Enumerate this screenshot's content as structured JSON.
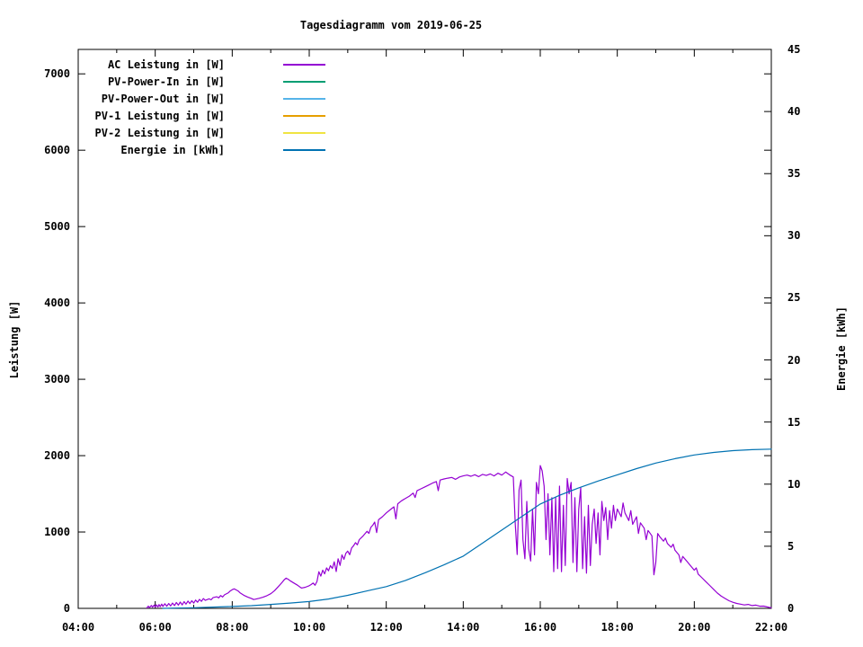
{
  "chart_data": {
    "type": "line",
    "title": "Tagesdiagramm vom 2019-06-25",
    "grid": false,
    "legend_position": "top-left-inside",
    "x_axis": {
      "range_hours": [
        4,
        22
      ],
      "major_every_hours": 2,
      "minor_every_hours": 1,
      "tick_labels": [
        "04:00",
        "06:00",
        "08:00",
        "10:00",
        "12:00",
        "14:00",
        "16:00",
        "18:00",
        "20:00",
        "22:00"
      ]
    },
    "y_left": {
      "label": "Leistung [W]",
      "range": [
        0,
        7320
      ],
      "tick_values": [
        0,
        1000,
        2000,
        3000,
        4000,
        5000,
        6000,
        7000
      ]
    },
    "y_right": {
      "label": "Energie [kWh]",
      "range": [
        0,
        45
      ],
      "tick_values": [
        0,
        5,
        10,
        15,
        20,
        25,
        30,
        35,
        40,
        45
      ]
    },
    "series": [
      {
        "name": "AC Leistung in [W]",
        "color": "#9400d3",
        "axis": "left",
        "points": [
          [
            5.78,
            5
          ],
          [
            5.82,
            30
          ],
          [
            5.85,
            10
          ],
          [
            5.9,
            38
          ],
          [
            5.93,
            15
          ],
          [
            5.97,
            42
          ],
          [
            6.0,
            16
          ],
          [
            6.03,
            46
          ],
          [
            6.07,
            18
          ],
          [
            6.1,
            50
          ],
          [
            6.13,
            22
          ],
          [
            6.17,
            55
          ],
          [
            6.2,
            25
          ],
          [
            6.25,
            60
          ],
          [
            6.3,
            28
          ],
          [
            6.35,
            64
          ],
          [
            6.4,
            32
          ],
          [
            6.45,
            70
          ],
          [
            6.5,
            36
          ],
          [
            6.55,
            76
          ],
          [
            6.6,
            42
          ],
          [
            6.65,
            82
          ],
          [
            6.7,
            46
          ],
          [
            6.75,
            88
          ],
          [
            6.8,
            55
          ],
          [
            6.85,
            95
          ],
          [
            6.9,
            62
          ],
          [
            6.95,
            100
          ],
          [
            7.0,
            70
          ],
          [
            7.05,
            108
          ],
          [
            7.1,
            80
          ],
          [
            7.15,
            118
          ],
          [
            7.2,
            92
          ],
          [
            7.25,
            128
          ],
          [
            7.3,
            105
          ],
          [
            7.4,
            125
          ],
          [
            7.45,
            112
          ],
          [
            7.5,
            140
          ],
          [
            7.6,
            152
          ],
          [
            7.65,
            138
          ],
          [
            7.7,
            168
          ],
          [
            7.75,
            148
          ],
          [
            7.8,
            178
          ],
          [
            7.9,
            205
          ],
          [
            7.95,
            228
          ],
          [
            8.0,
            245
          ],
          [
            8.05,
            255
          ],
          [
            8.1,
            242
          ],
          [
            8.15,
            228
          ],
          [
            8.2,
            205
          ],
          [
            8.3,
            172
          ],
          [
            8.4,
            148
          ],
          [
            8.5,
            128
          ],
          [
            8.55,
            116
          ],
          [
            8.6,
            120
          ],
          [
            8.7,
            132
          ],
          [
            8.8,
            146
          ],
          [
            8.9,
            166
          ],
          [
            9.0,
            192
          ],
          [
            9.1,
            232
          ],
          [
            9.2,
            286
          ],
          [
            9.3,
            342
          ],
          [
            9.35,
            376
          ],
          [
            9.4,
            395
          ],
          [
            9.45,
            382
          ],
          [
            9.5,
            362
          ],
          [
            9.6,
            332
          ],
          [
            9.7,
            302
          ],
          [
            9.75,
            282
          ],
          [
            9.8,
            266
          ],
          [
            9.9,
            276
          ],
          [
            10.0,
            296
          ],
          [
            10.05,
            312
          ],
          [
            10.1,
            332
          ],
          [
            10.15,
            302
          ],
          [
            10.2,
            352
          ],
          [
            10.25,
            480
          ],
          [
            10.3,
            422
          ],
          [
            10.35,
            500
          ],
          [
            10.4,
            452
          ],
          [
            10.45,
            530
          ],
          [
            10.5,
            492
          ],
          [
            10.55,
            560
          ],
          [
            10.6,
            522
          ],
          [
            10.65,
            610
          ],
          [
            10.7,
            482
          ],
          [
            10.75,
            650
          ],
          [
            10.8,
            562
          ],
          [
            10.85,
            700
          ],
          [
            10.9,
            642
          ],
          [
            10.95,
            720
          ],
          [
            11.0,
            750
          ],
          [
            11.05,
            702
          ],
          [
            11.1,
            790
          ],
          [
            11.15,
            820
          ],
          [
            11.2,
            860
          ],
          [
            11.25,
            832
          ],
          [
            11.3,
            900
          ],
          [
            11.4,
            950
          ],
          [
            11.5,
            1010
          ],
          [
            11.55,
            982
          ],
          [
            11.6,
            1060
          ],
          [
            11.65,
            1090
          ],
          [
            11.7,
            1130
          ],
          [
            11.75,
            992
          ],
          [
            11.8,
            1160
          ],
          [
            11.9,
            1200
          ],
          [
            12.0,
            1250
          ],
          [
            12.1,
            1290
          ],
          [
            12.2,
            1330
          ],
          [
            12.25,
            1172
          ],
          [
            12.3,
            1370
          ],
          [
            12.4,
            1410
          ],
          [
            12.5,
            1440
          ],
          [
            12.6,
            1470
          ],
          [
            12.7,
            1510
          ],
          [
            12.75,
            1452
          ],
          [
            12.8,
            1540
          ],
          [
            12.9,
            1565
          ],
          [
            13.0,
            1590
          ],
          [
            13.1,
            1615
          ],
          [
            13.2,
            1640
          ],
          [
            13.3,
            1660
          ],
          [
            13.35,
            1542
          ],
          [
            13.4,
            1680
          ],
          [
            13.5,
            1695
          ],
          [
            13.6,
            1705
          ],
          [
            13.7,
            1715
          ],
          [
            13.8,
            1690
          ],
          [
            13.9,
            1720
          ],
          [
            14.0,
            1735
          ],
          [
            14.1,
            1745
          ],
          [
            14.2,
            1730
          ],
          [
            14.3,
            1750
          ],
          [
            14.4,
            1725
          ],
          [
            14.5,
            1755
          ],
          [
            14.6,
            1740
          ],
          [
            14.7,
            1760
          ],
          [
            14.8,
            1735
          ],
          [
            14.9,
            1770
          ],
          [
            15.0,
            1745
          ],
          [
            15.1,
            1785
          ],
          [
            15.2,
            1750
          ],
          [
            15.3,
            1720
          ],
          [
            15.35,
            1100
          ],
          [
            15.4,
            705
          ],
          [
            15.45,
            1550
          ],
          [
            15.5,
            1680
          ],
          [
            15.55,
            900
          ],
          [
            15.6,
            650
          ],
          [
            15.65,
            1400
          ],
          [
            15.7,
            780
          ],
          [
            15.75,
            620
          ],
          [
            15.8,
            1300
          ],
          [
            15.85,
            700
          ],
          [
            15.9,
            1650
          ],
          [
            15.95,
            1500
          ],
          [
            16.0,
            1870
          ],
          [
            16.05,
            1800
          ],
          [
            16.1,
            1600
          ],
          [
            16.15,
            900
          ],
          [
            16.2,
            1500
          ],
          [
            16.25,
            700
          ],
          [
            16.3,
            1450
          ],
          [
            16.35,
            480
          ],
          [
            16.4,
            1450
          ],
          [
            16.45,
            520
          ],
          [
            16.5,
            1600
          ],
          [
            16.55,
            480
          ],
          [
            16.6,
            1350
          ],
          [
            16.65,
            560
          ],
          [
            16.7,
            1700
          ],
          [
            16.75,
            1500
          ],
          [
            16.8,
            1650
          ],
          [
            16.85,
            600
          ],
          [
            16.9,
            1450
          ],
          [
            16.95,
            480
          ],
          [
            17.0,
            1300
          ],
          [
            17.05,
            1580
          ],
          [
            17.1,
            520
          ],
          [
            17.15,
            1200
          ],
          [
            17.2,
            460
          ],
          [
            17.25,
            1350
          ],
          [
            17.3,
            560
          ],
          [
            17.35,
            1100
          ],
          [
            17.4,
            1300
          ],
          [
            17.45,
            850
          ],
          [
            17.5,
            1250
          ],
          [
            17.55,
            700
          ],
          [
            17.6,
            1400
          ],
          [
            17.65,
            1150
          ],
          [
            17.7,
            1320
          ],
          [
            17.75,
            900
          ],
          [
            17.8,
            1280
          ],
          [
            17.85,
            1050
          ],
          [
            17.9,
            1350
          ],
          [
            17.95,
            1150
          ],
          [
            18.0,
            1300
          ],
          [
            18.1,
            1200
          ],
          [
            18.15,
            1380
          ],
          [
            18.2,
            1250
          ],
          [
            18.3,
            1150
          ],
          [
            18.35,
            1280
          ],
          [
            18.4,
            1100
          ],
          [
            18.5,
            1200
          ],
          [
            18.55,
            980
          ],
          [
            18.6,
            1120
          ],
          [
            18.7,
            1050
          ],
          [
            18.75,
            900
          ],
          [
            18.8,
            1020
          ],
          [
            18.9,
            950
          ],
          [
            18.95,
            440
          ],
          [
            19.0,
            600
          ],
          [
            19.05,
            980
          ],
          [
            19.1,
            940
          ],
          [
            19.2,
            880
          ],
          [
            19.25,
            920
          ],
          [
            19.3,
            850
          ],
          [
            19.4,
            800
          ],
          [
            19.45,
            840
          ],
          [
            19.5,
            760
          ],
          [
            19.6,
            700
          ],
          [
            19.65,
            600
          ],
          [
            19.7,
            680
          ],
          [
            19.8,
            620
          ],
          [
            19.9,
            560
          ],
          [
            20.0,
            500
          ],
          [
            20.05,
            530
          ],
          [
            20.1,
            450
          ],
          [
            20.2,
            400
          ],
          [
            20.3,
            350
          ],
          [
            20.4,
            300
          ],
          [
            20.5,
            250
          ],
          [
            20.6,
            200
          ],
          [
            20.7,
            160
          ],
          [
            20.8,
            130
          ],
          [
            20.9,
            100
          ],
          [
            21.0,
            80
          ],
          [
            21.1,
            65
          ],
          [
            21.2,
            55
          ],
          [
            21.3,
            45
          ],
          [
            21.4,
            52
          ],
          [
            21.5,
            36
          ],
          [
            21.6,
            42
          ],
          [
            21.7,
            28
          ],
          [
            21.8,
            30
          ],
          [
            21.9,
            18
          ],
          [
            21.95,
            12
          ],
          [
            22.0,
            8
          ]
        ]
      },
      {
        "name": "PV-Power-In in [W]",
        "color": "#009e73",
        "axis": "left",
        "points": []
      },
      {
        "name": "PV-Power-Out in [W]",
        "color": "#56b4e9",
        "axis": "left",
        "points": []
      },
      {
        "name": "PV-1 Leistung in [W]",
        "color": "#e69f00",
        "axis": "left",
        "points": []
      },
      {
        "name": "PV-2 Leistung in [W]",
        "color": "#f0e442",
        "axis": "left",
        "points": []
      },
      {
        "name": "Energie in [kWh]",
        "color": "#0072b2",
        "axis": "right",
        "points": [
          [
            6.2,
            0.0
          ],
          [
            6.5,
            0.02
          ],
          [
            7.0,
            0.05
          ],
          [
            7.5,
            0.1
          ],
          [
            8.0,
            0.15
          ],
          [
            8.5,
            0.22
          ],
          [
            9.0,
            0.32
          ],
          [
            9.5,
            0.43
          ],
          [
            10.0,
            0.55
          ],
          [
            10.5,
            0.75
          ],
          [
            11.0,
            1.05
          ],
          [
            11.5,
            1.4
          ],
          [
            12.0,
            1.75
          ],
          [
            12.5,
            2.25
          ],
          [
            13.0,
            2.85
          ],
          [
            13.5,
            3.5
          ],
          [
            14.0,
            4.2
          ],
          [
            14.5,
            5.25
          ],
          [
            15.0,
            6.3
          ],
          [
            15.5,
            7.35
          ],
          [
            16.0,
            8.4
          ],
          [
            16.5,
            9.1
          ],
          [
            17.0,
            9.7
          ],
          [
            17.5,
            10.25
          ],
          [
            18.0,
            10.75
          ],
          [
            18.5,
            11.25
          ],
          [
            19.0,
            11.7
          ],
          [
            19.5,
            12.05
          ],
          [
            20.0,
            12.35
          ],
          [
            20.5,
            12.55
          ],
          [
            21.0,
            12.7
          ],
          [
            21.5,
            12.78
          ],
          [
            22.0,
            12.82
          ]
        ]
      }
    ]
  }
}
